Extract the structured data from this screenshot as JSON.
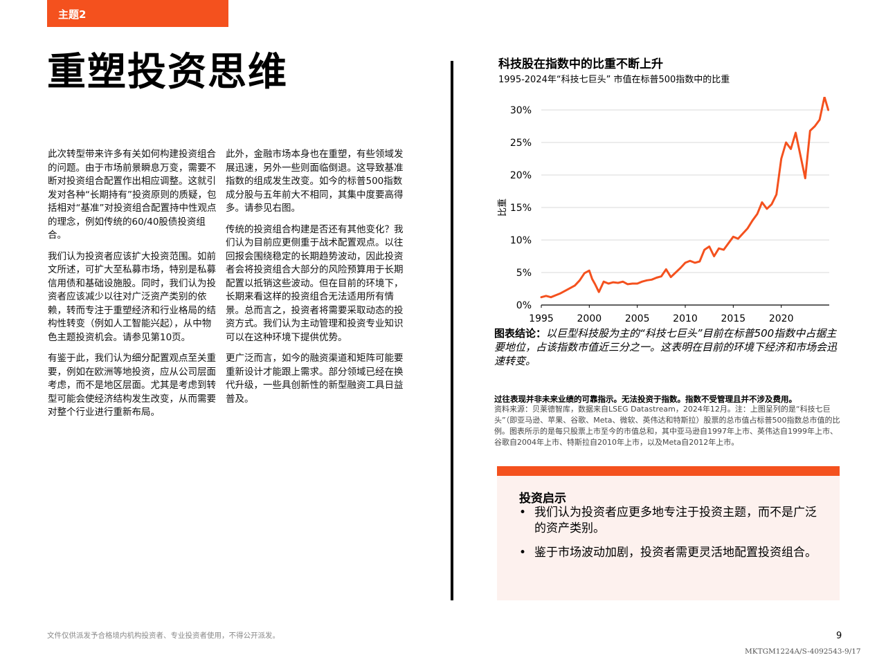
{
  "topic_tag": "主题2",
  "page_title": "重塑投资思维",
  "left_column": [
    "此次转型带来许多有关如何构建投资组合的问题。由于市场前景瞬息万变，需要不断对投资组合配置作出相应调整。这就引发对各种“长期持有”投资原则的质疑，包括相对“基准”对投资组合配置持中性观点的理念，例如传统的60/40股债投资组合。",
    "我们认为投资者应该扩大投资范围。如前文所述，可扩大至私募市场，特别是私募信用债和基础设施股。同时，我们认为投资者应该减少以往对广泛资产类别的依赖，转而专注于重塑经济和行业格局的结构性转变（例如人工智能兴起），从中物色主题投资机会。请参见第10页。",
    "有鉴于此，我们认为细分配置观点至关重要，例如在欧洲等地投资，应从公司层面考虑，而不是地区层面。尤其是考虑到转型可能会使经济结构发生改变，从而需要对整个行业进行重新布局。"
  ],
  "middle_column": [
    "此外，金融市场本身也在重塑，有些领域发展迅速，另外一些则面临倒退。这导致基准指数的组成发生改变。如今的标普500指数成分股与五年前大不相同，其集中度要高得多。请参见右图。",
    "传统的投资组合构建是否还有其他变化？我们认为目前应更侧重于战术配置观点。以往回报会围绕稳定的长期趋势波动，因此投资者会将投资组合大部分的风险预算用于长期配置以抵销这些波动。但在目前的环境下，长期来看这样的投资组合无法适用所有情景。总而言之，投资者将需要采取动态的投资方式。我们认为主动管理和投资专业知识可以在这种环境下提供优势。",
    "更广泛而言，如今的融资渠道和矩阵可能要重新设计才能跟上需求。部分领域已经在换代升级，一些具创新性的新型融资工具日益普及。"
  ],
  "chart": {
    "title": "科技股在指数中的比重不断上升",
    "subtitle": "1995-2024年“科技七巨头” 市值在标普500指数中的比重",
    "conclusion_label": "图表结论：",
    "conclusion_text": "以巨型科技股为主的“科技七巨头”目前在标普500指数中占据主要地位，占该指数市值近三分之一。这表明在目前的环境下经济和市场会迅速转变。",
    "disclaimer": "过往表现并非未来业绩的可靠指示。无法投资于指数。指数不受管理且并不涉及费用。",
    "source": "资料来源：贝莱德智库，数据来自LSEG Datastream，2024年12月。注：上图呈列的是“科技七巨头”（即亚马逊、苹果、谷歌、Meta、微软、英伟达和特斯拉）股票的总市值占标普500指数总市值的比例。图表所示的是每只股票上市至今的市值总和，其中亚马逊自1997年上市、英伟达自1999年上市、谷歌自2004年上市、特斯拉自2010年上市，以及Meta自2012年上市。"
  },
  "chart_data": {
    "type": "line",
    "title": "科技股在指数中的比重不断上升",
    "subtitle": "1995-2024年“科技七巨头” 市值在标普500指数中的比重",
    "xlabel": "",
    "ylabel": "比重",
    "xlim": [
      1995,
      2025
    ],
    "ylim": [
      0,
      30
    ],
    "x_ticks": [
      "1995",
      "2000",
      "2005",
      "2010",
      "2015",
      "2020"
    ],
    "y_ticks": [
      "0%",
      "5%",
      "10%",
      "15%",
      "20%",
      "25%",
      "30%"
    ],
    "grid": true,
    "legend": "none",
    "color": "#f4511e",
    "x": [
      1995,
      1995.5,
      1996,
      1996.5,
      1997,
      1997.5,
      1998,
      1998.5,
      1999,
      1999.5,
      2000,
      2000.3,
      2000.6,
      2001,
      2001.5,
      2002,
      2002.5,
      2003,
      2003.5,
      2004,
      2004.5,
      2005,
      2005.5,
      2006,
      2006.5,
      2007,
      2007.5,
      2008,
      2008.5,
      2009,
      2009.5,
      2010,
      2010.5,
      2011,
      2011.5,
      2012,
      2012.5,
      2013,
      2013.5,
      2014,
      2014.5,
      2015,
      2015.5,
      2016,
      2016.5,
      2017,
      2017.5,
      2018,
      2018.5,
      2019,
      2019.5,
      2020,
      2020.5,
      2021,
      2021.5,
      2022,
      2022.5,
      2023,
      2023.5,
      2024,
      2024.5,
      2024.9
    ],
    "values": [
      1.2,
      1.4,
      1.2,
      1.5,
      1.8,
      2.2,
      2.6,
      3.0,
      3.8,
      4.9,
      5.3,
      4.0,
      3.2,
      2.0,
      3.6,
      3.3,
      3.5,
      3.4,
      3.6,
      3.2,
      3.3,
      3.3,
      3.6,
      3.8,
      3.9,
      4.2,
      4.4,
      5.5,
      4.3,
      5.0,
      5.7,
      6.5,
      6.8,
      6.5,
      6.7,
      8.5,
      9.0,
      7.5,
      8.7,
      8.5,
      9.5,
      10.5,
      10.2,
      11.0,
      11.8,
      13.0,
      14.0,
      15.8,
      14.8,
      15.5,
      17.0,
      22.5,
      25.0,
      24.0,
      26.5,
      23.0,
      19.5,
      26.8,
      27.5,
      28.5,
      32.0,
      30.0
    ]
  },
  "insight": {
    "title": "投资启示",
    "items": [
      "我们认为投资者应更多地专注于投资主题，而不是广泛的资产类别。",
      "鉴于市场波动加剧，投资者需更灵活地配置投资组合。"
    ]
  },
  "footer": {
    "note": "文件仅供派发予合格境内机构投资者、专业投资者使用，不得公开派发。",
    "page_number": "9",
    "doc_code": "MKTGM1224A/S-4092543-9/17"
  }
}
